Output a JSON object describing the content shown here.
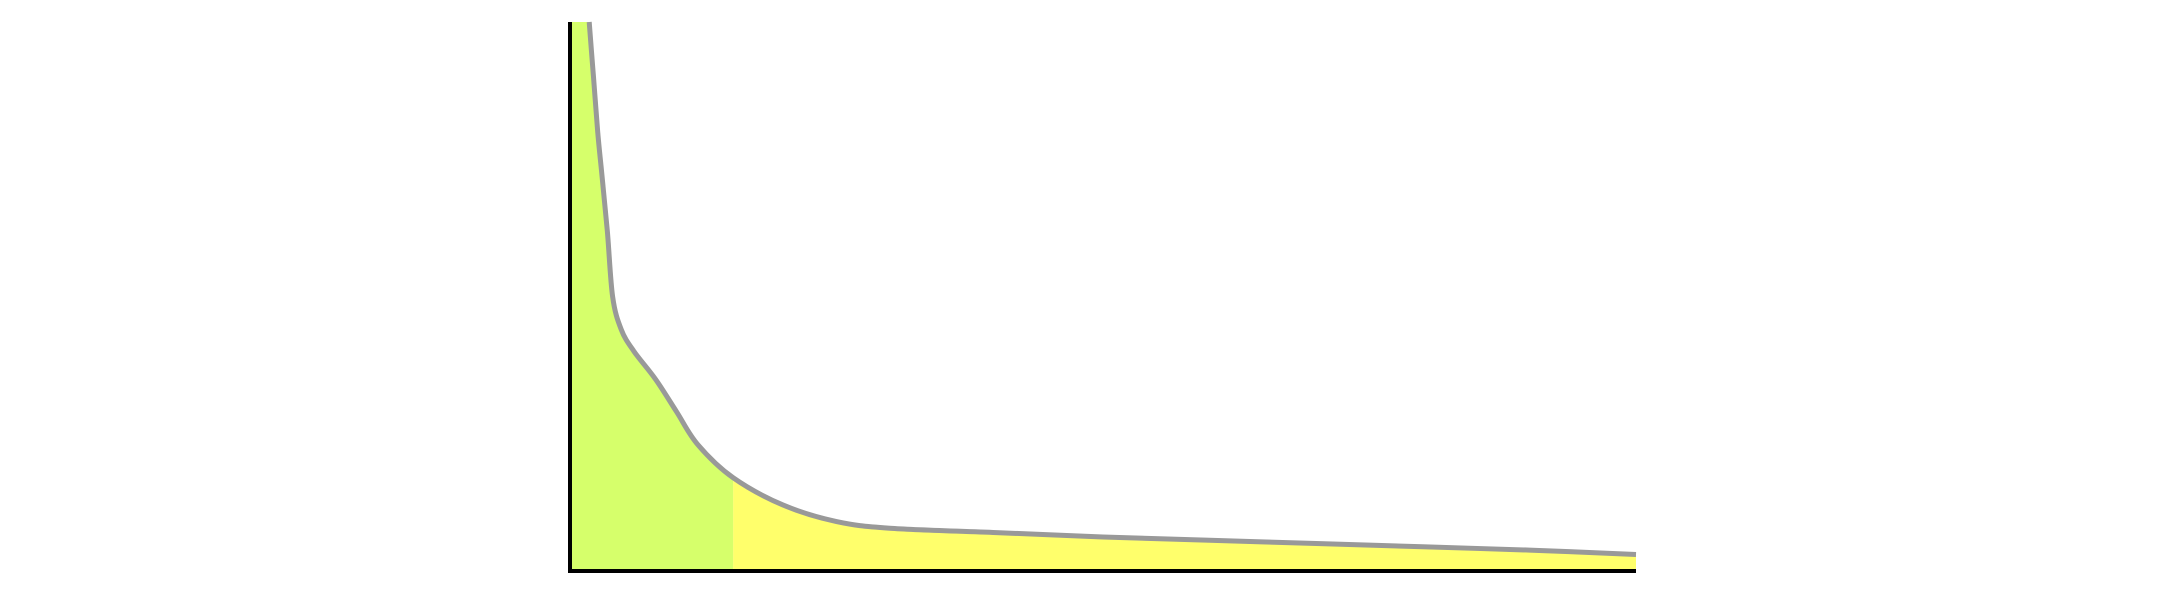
{
  "colors": {
    "background": "#ffffff",
    "head_fill": "#d6ff6b",
    "tail_fill": "#ffff6b",
    "curve": "#999999",
    "axis": "#000000"
  },
  "chart_data": {
    "type": "area",
    "title": "",
    "xlabel": "",
    "ylabel": "",
    "grid": false,
    "legend": "none",
    "ticks_shown": false,
    "xlim": [
      0,
      1
    ],
    "ylim": [
      0,
      1
    ],
    "highlight_split_x": 0.153,
    "series": [
      {
        "x": [
          0.018,
          0.022,
          0.026,
          0.03,
          0.035,
          0.04,
          0.048,
          0.06,
          0.08,
          0.1,
          0.12,
          0.153,
          0.2,
          0.25,
          0.3,
          0.4,
          0.5,
          0.6,
          0.7,
          0.8,
          0.9,
          1.0
        ],
        "values": [
          1.0,
          0.9,
          0.8,
          0.72,
          0.62,
          0.5,
          0.44,
          0.4,
          0.35,
          0.29,
          0.23,
          0.17,
          0.12,
          0.09,
          0.078,
          0.07,
          0.062,
          0.056,
          0.05,
          0.044,
          0.038,
          0.03
        ]
      }
    ]
  }
}
